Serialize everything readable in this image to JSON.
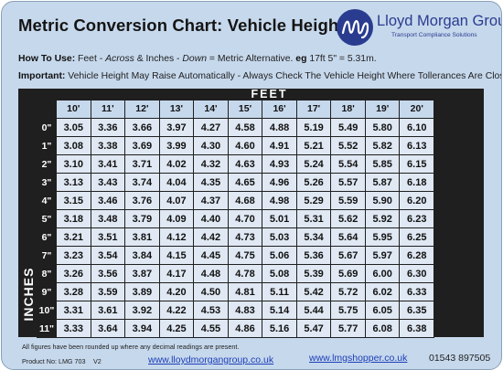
{
  "title": "Metric Conversion Chart: Vehicle Height",
  "brand": {
    "name": "Lloyd Morgan Group",
    "tagline": "Transport Compliance Solutions",
    "color": "#2a3c8f"
  },
  "instructions": {
    "how_label": "How To Use:",
    "how_text_1": " Feet - ",
    "how_across": "Across",
    "how_text_2": " & Inches - ",
    "how_down": "Down",
    "how_text_3": " = Metric Alternative. ",
    "how_eg": "eg",
    "how_text_4": " 17ft 5\" = 5.31m.",
    "important_label": "Important:",
    "important_text": " Vehicle Height May Raise Automatically - Always Check The Vehicle Height Where Tollerances Are Close."
  },
  "table": {
    "feet_label": "FEET",
    "inches_label": "INCHES",
    "feet": [
      "10'",
      "11'",
      "12'",
      "13'",
      "14'",
      "15'",
      "16'",
      "17'",
      "18'",
      "19'",
      "20'"
    ],
    "rows": [
      {
        "inch": "0\"",
        "values": [
          "3.05",
          "3.36",
          "3.66",
          "3.97",
          "4.27",
          "4.58",
          "4.88",
          "5.19",
          "5.49",
          "5.80",
          "6.10"
        ]
      },
      {
        "inch": "1\"",
        "values": [
          "3.08",
          "3.38",
          "3.69",
          "3.99",
          "4.30",
          "4.60",
          "4.91",
          "5.21",
          "5.52",
          "5.82",
          "6.13"
        ]
      },
      {
        "inch": "2\"",
        "values": [
          "3.10",
          "3.41",
          "3.71",
          "4.02",
          "4.32",
          "4.63",
          "4.93",
          "5.24",
          "5.54",
          "5.85",
          "6.15"
        ]
      },
      {
        "inch": "3\"",
        "values": [
          "3.13",
          "3.43",
          "3.74",
          "4.04",
          "4.35",
          "4.65",
          "4.96",
          "5.26",
          "5.57",
          "5.87",
          "6.18"
        ]
      },
      {
        "inch": "4\"",
        "values": [
          "3.15",
          "3.46",
          "3.76",
          "4.07",
          "4.37",
          "4.68",
          "4.98",
          "5.29",
          "5.59",
          "5.90",
          "6.20"
        ]
      },
      {
        "inch": "5\"",
        "values": [
          "3.18",
          "3.48",
          "3.79",
          "4.09",
          "4.40",
          "4.70",
          "5.01",
          "5.31",
          "5.62",
          "5.92",
          "6.23"
        ]
      },
      {
        "inch": "6\"",
        "values": [
          "3.21",
          "3.51",
          "3.81",
          "4.12",
          "4.42",
          "4.73",
          "5.03",
          "5.34",
          "5.64",
          "5.95",
          "6.25"
        ]
      },
      {
        "inch": "7\"",
        "values": [
          "3.23",
          "3.54",
          "3.84",
          "4.15",
          "4.45",
          "4.75",
          "5.06",
          "5.36",
          "5.67",
          "5.97",
          "6.28"
        ]
      },
      {
        "inch": "8\"",
        "values": [
          "3.26",
          "3.56",
          "3.87",
          "4.17",
          "4.48",
          "4.78",
          "5.08",
          "5.39",
          "5.69",
          "6.00",
          "6.30"
        ]
      },
      {
        "inch": "9\"",
        "values": [
          "3.28",
          "3.59",
          "3.89",
          "4.20",
          "4.50",
          "4.81",
          "5.11",
          "5.42",
          "5.72",
          "6.02",
          "6.33"
        ]
      },
      {
        "inch": "10\"",
        "values": [
          "3.31",
          "3.61",
          "3.92",
          "4.22",
          "4.53",
          "4.83",
          "5.14",
          "5.44",
          "5.75",
          "6.05",
          "6.35"
        ]
      },
      {
        "inch": "11\"",
        "values": [
          "3.33",
          "3.64",
          "3.94",
          "4.25",
          "4.55",
          "4.86",
          "5.16",
          "5.47",
          "5.77",
          "6.08",
          "6.38"
        ]
      }
    ]
  },
  "footer": {
    "note": "All figures have been rounded up where any decimal readings are present.",
    "product": "Product No: LMG 703",
    "version": "V2",
    "link1": "www.lloydmorgangroup.co.uk",
    "link2": "www.lmgshopper.co.uk",
    "phone": "01543 897505"
  }
}
